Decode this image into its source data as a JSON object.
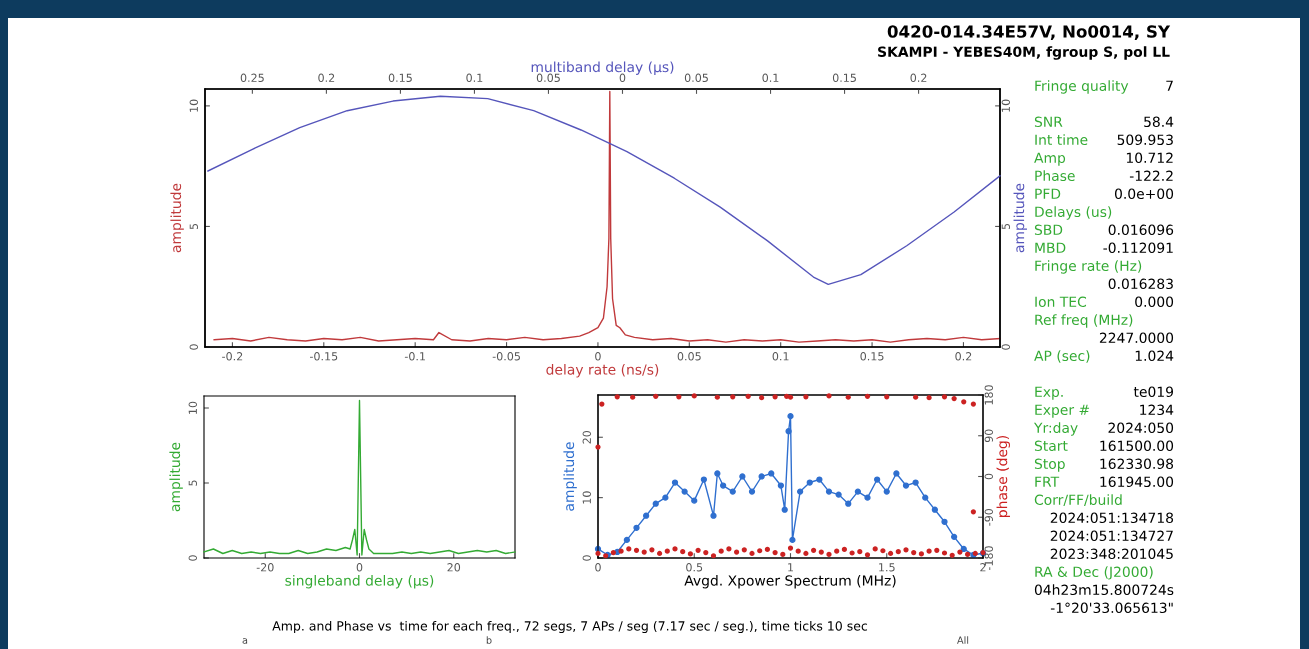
{
  "chart_data": [
    {
      "type": "line",
      "xlabel": "delay rate (ns/s)",
      "ylabel": "amplitude",
      "y2label": "amplitude",
      "x2label": "multiband delay (μs)",
      "xlim": [
        -0.215,
        0.22
      ],
      "xticks": [
        -0.2,
        -0.15,
        -0.1,
        -0.05,
        0,
        0.05,
        0.1,
        0.15,
        0.2
      ],
      "ylim": [
        0,
        10.7
      ],
      "yticks": [
        0,
        5,
        10
      ],
      "y2lim": [
        0,
        10.7
      ],
      "y2ticks": [
        0,
        5,
        10
      ],
      "x2lim": [
        -0.282,
        0.255
      ],
      "x2ticks": [
        {
          "value": -0.25,
          "label": "0.25"
        },
        {
          "value": -0.2,
          "label": "0.2"
        },
        {
          "value": -0.15,
          "label": "0.15"
        },
        {
          "value": -0.1,
          "label": "0.1"
        },
        {
          "value": -0.05,
          "label": "0.05"
        },
        0,
        0.05,
        0.1,
        0.15,
        0.2
      ],
      "series": [
        {
          "color": "#c0393b",
          "x": [
            -0.21,
            -0.2,
            -0.19,
            -0.18,
            -0.17,
            -0.16,
            -0.15,
            -0.14,
            -0.13,
            -0.12,
            -0.11,
            -0.1,
            -0.09,
            -0.087,
            -0.08,
            -0.07,
            -0.06,
            -0.05,
            -0.04,
            -0.03,
            -0.02,
            -0.01,
            -0.005,
            0,
            0.003,
            0.005,
            0.006,
            0.0065,
            0.007,
            0.008,
            0.01,
            0.012,
            0.015,
            0.02,
            0.03,
            0.04,
            0.05,
            0.06,
            0.07,
            0.08,
            0.09,
            0.1,
            0.11,
            0.12,
            0.13,
            0.14,
            0.15,
            0.16,
            0.17,
            0.18,
            0.19,
            0.2,
            0.21,
            0.22
          ],
          "values": [
            0.3,
            0.35,
            0.25,
            0.4,
            0.3,
            0.25,
            0.35,
            0.3,
            0.4,
            0.25,
            0.3,
            0.35,
            0.3,
            0.6,
            0.3,
            0.25,
            0.35,
            0.3,
            0.4,
            0.3,
            0.35,
            0.45,
            0.6,
            0.8,
            1.2,
            2.5,
            4.5,
            10.6,
            4.5,
            2.0,
            0.9,
            0.8,
            0.5,
            0.4,
            0.3,
            0.35,
            0.25,
            0.3,
            0.2,
            0.3,
            0.25,
            0.3,
            0.2,
            0.25,
            0.3,
            0.25,
            0.3,
            0.2,
            0.3,
            0.35,
            0.3,
            0.4,
            0.3,
            0.35
          ]
        },
        {
          "color": "#5555bb",
          "axis": "x2",
          "x": [
            -0.28,
            -0.25,
            -0.218,
            -0.186,
            -0.155,
            -0.123,
            -0.091,
            -0.06,
            -0.028,
            0.003,
            0.035,
            0.066,
            0.098,
            0.129,
            0.139,
            0.161,
            0.192,
            0.224,
            0.255
          ],
          "values": [
            7.3,
            8.2,
            9.1,
            9.8,
            10.2,
            10.4,
            10.3,
            9.8,
            9.0,
            8.1,
            7.0,
            5.8,
            4.4,
            2.9,
            2.6,
            3.0,
            4.2,
            5.6,
            7.1
          ]
        }
      ]
    },
    {
      "type": "line",
      "xlabel": "singleband delay (μs)",
      "ylabel": "amplitude",
      "xlim": [
        -33,
        33
      ],
      "xticks": [
        -20,
        0,
        20
      ],
      "ylim": [
        0,
        10.8
      ],
      "yticks": [
        0,
        5,
        10
      ],
      "series": [
        {
          "color": "#33aa33",
          "x": [
            -33,
            -31,
            -29,
            -27,
            -25,
            -23,
            -21,
            -19,
            -17,
            -15,
            -13,
            -11,
            -9,
            -7,
            -5,
            -3,
            -2,
            -1.5,
            -1,
            -0.5,
            0,
            0.5,
            1,
            1.5,
            2,
            3,
            5,
            7,
            9,
            11,
            13,
            15,
            17,
            19,
            21,
            23,
            25,
            27,
            29,
            31,
            33
          ],
          "values": [
            0.4,
            0.6,
            0.3,
            0.5,
            0.3,
            0.4,
            0.3,
            0.4,
            0.3,
            0.3,
            0.5,
            0.3,
            0.4,
            0.6,
            0.5,
            0.7,
            0.6,
            1.2,
            1.9,
            0.2,
            10.5,
            0.2,
            1.9,
            1.2,
            0.6,
            0.3,
            0.3,
            0.3,
            0.4,
            0.3,
            0.4,
            0.3,
            0.4,
            0.5,
            0.3,
            0.4,
            0.5,
            0.4,
            0.5,
            0.3,
            0.4
          ]
        }
      ]
    },
    {
      "type": "line",
      "marker": "circle",
      "xlabel": "Avgd. Xpower Spectrum (MHz)",
      "ylabel": "amplitude",
      "y2label": "phase (deg)",
      "xlim": [
        0,
        2
      ],
      "xticks": [
        0,
        0.5,
        1,
        1.5,
        2
      ],
      "ylim": [
        0,
        27
      ],
      "yticks": [
        0,
        10,
        20
      ],
      "y2lim": [
        -180,
        180
      ],
      "y2ticks": [
        -180,
        -90,
        0,
        90,
        180
      ],
      "series": [
        {
          "color": "#2f6fcf",
          "x": [
            0,
            0.05,
            0.1,
            0.15,
            0.2,
            0.25,
            0.3,
            0.35,
            0.4,
            0.45,
            0.5,
            0.55,
            0.6,
            0.62,
            0.65,
            0.7,
            0.75,
            0.8,
            0.85,
            0.9,
            0.95,
            0.97,
            0.99,
            1.0,
            1.01,
            1.05,
            1.1,
            1.15,
            1.2,
            1.25,
            1.3,
            1.35,
            1.4,
            1.45,
            1.5,
            1.55,
            1.6,
            1.65,
            1.7,
            1.75,
            1.8,
            1.85,
            1.9,
            1.95,
            2.0
          ],
          "values": [
            1.5,
            0.5,
            1,
            3,
            5,
            7,
            9,
            10,
            12.5,
            11,
            9.5,
            13,
            7,
            14,
            12,
            11,
            13.5,
            11,
            13.5,
            14,
            12,
            8,
            21,
            23.5,
            3,
            11,
            12.5,
            13,
            11,
            10.5,
            9,
            11,
            10,
            13,
            11,
            14,
            12,
            12.5,
            10,
            8,
            6,
            3.5,
            1.5,
            0.5,
            0.8
          ]
        },
        {
          "type": "scatter",
          "axis": "y2",
          "color": "#cc2222",
          "x": [
            0,
            0.04,
            0.08,
            0.12,
            0.16,
            0.2,
            0.24,
            0.28,
            0.32,
            0.36,
            0.4,
            0.44,
            0.48,
            0.52,
            0.56,
            0.6,
            0.64,
            0.68,
            0.72,
            0.76,
            0.8,
            0.84,
            0.88,
            0.92,
            0.96,
            1,
            1.04,
            1.08,
            1.12,
            1.16,
            1.2,
            1.24,
            1.28,
            1.32,
            1.36,
            1.4,
            1.44,
            1.48,
            1.52,
            1.56,
            1.6,
            1.64,
            1.68,
            1.72,
            1.76,
            1.8,
            1.84,
            1.88,
            1.92,
            1.96,
            2,
            0.02,
            0.1,
            0.18,
            0.3,
            0.42,
            0.5,
            0.62,
            0.7,
            0.78,
            0.85,
            0.92,
            0.98,
            1.0,
            1.08,
            1.2,
            1.3,
            1.4,
            1.5,
            1.65,
            1.72,
            1.8,
            1.85,
            1.9,
            1.95,
            0.0,
            1.95
          ],
          "values": [
            -170,
            -175,
            -168,
            -165,
            -160,
            -163,
            -167,
            -162,
            -170,
            -165,
            -160,
            -166,
            -171,
            -163,
            -168,
            -175,
            -165,
            -160,
            -167,
            -162,
            -170,
            -164,
            -161,
            -168,
            -172,
            -158,
            -165,
            -170,
            -163,
            -167,
            -172,
            -165,
            -161,
            -169,
            -166,
            -173,
            -160,
            -164,
            -170,
            -166,
            -162,
            -168,
            -171,
            -165,
            -163,
            -169,
            -174,
            -167,
            -172,
            -170,
            -168,
            160,
            176,
            175,
            177,
            176,
            178,
            175,
            176,
            177,
            174,
            176,
            177,
            175,
            176,
            178,
            175,
            177,
            176,
            175,
            174,
            176,
            172,
            165,
            160,
            65,
            -78
          ]
        }
      ]
    },
    {
      "type": "other",
      "title": "0420-014.34E57V, No0014, SY",
      "subtitle": "SKAMPI - YEBES40M, fgroup S, pol LL",
      "color": "#33aa33",
      "categories": [
        "Fringe quality",
        null,
        "SNR",
        "Int time",
        "Amp",
        "Phase",
        "PFD",
        "Delays (us)",
        "SBD",
        "MBD",
        "Fringe rate (Hz)",
        null,
        "Ion TEC",
        "Ref freq (MHz)",
        null,
        "AP (sec)",
        null,
        "Exp.",
        "Exper #",
        "Yr:day",
        "Start",
        "Stop",
        "FRT",
        "Corr/FF/build",
        null,
        null,
        null,
        "RA & Dec (J2000)",
        null,
        null
      ],
      "value_labels": [
        "7",
        null,
        "58.4",
        "509.953",
        "10.712",
        "-122.2",
        "0.0e+00",
        null,
        "0.016096",
        "-0.112091",
        null,
        "0.016283",
        "0.000",
        null,
        "2247.0000",
        "1.024",
        null,
        "te019",
        "1234",
        "2024:050",
        "161500.00",
        "162330.98",
        "161945.00",
        null,
        "2024:051:134718",
        "2024:051:134727",
        "2023:348:201045",
        null,
        "04h23m15.800724s",
        "-1°20'33.065613\""
      ],
      "annotations": [
        "Amp. and Phase vs  time for each freq., 72 segs, 7 APs / seg (7.17 sec / seg.), time ticks 10 sec",
        "a",
        "b",
        "All"
      ]
    }
  ]
}
